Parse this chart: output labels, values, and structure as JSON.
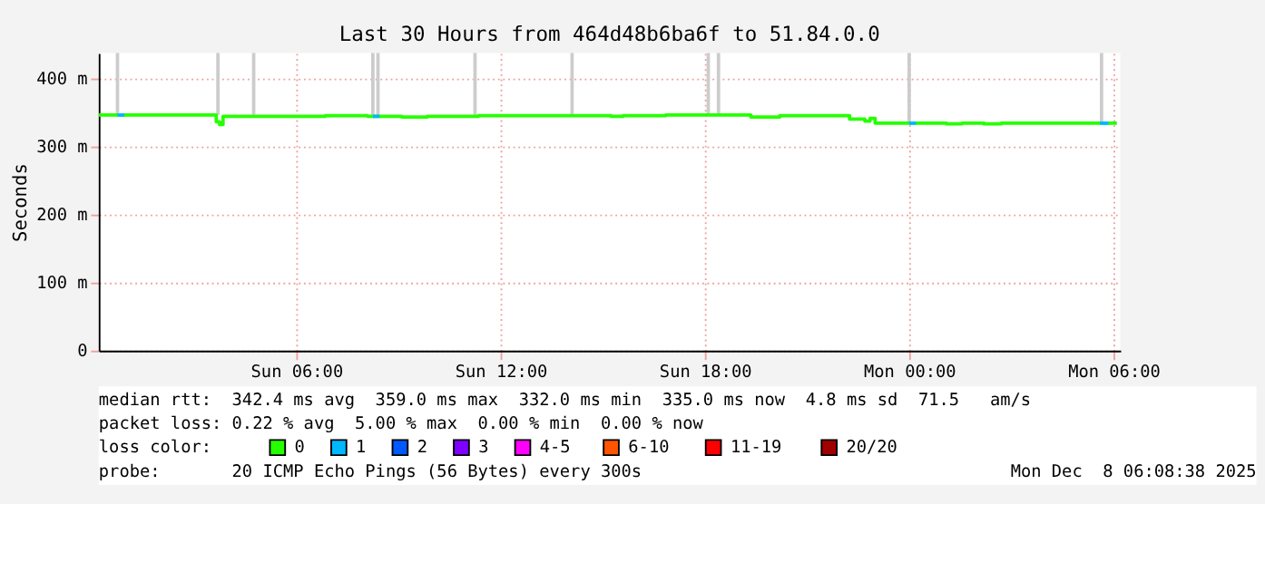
{
  "chart_data": {
    "type": "step",
    "title": "Last 30 Hours from 464d48b6ba6f to 51.84.0.0",
    "ylabel": "Seconds",
    "xlim": [
      "2025-12-07T00:12",
      "2025-12-08T06:12"
    ],
    "xticks": [
      {
        "value": "2025-12-07T06:00",
        "label": "Sun 06:00"
      },
      {
        "value": "2025-12-07T12:00",
        "label": "Sun 12:00"
      },
      {
        "value": "2025-12-07T18:00",
        "label": "Sun 18:00"
      },
      {
        "value": "2025-12-08T00:00",
        "label": "Mon 00:00"
      },
      {
        "value": "2025-12-08T06:00",
        "label": "Mon 06:00"
      }
    ],
    "ylim": [
      0,
      437
    ],
    "yticks": [
      0,
      {
        "value": 100,
        "label": "100 m"
      },
      {
        "value": 200,
        "label": "200 m"
      },
      {
        "value": 300,
        "label": "300 m"
      },
      {
        "value": 400,
        "label": "400 m"
      }
    ],
    "grid": true,
    "legend": "bottom left",
    "legend_title": "loss color:",
    "series": [
      {
        "type": "bar",
        "color": "#cccccc",
        "x": [
          "2025-12-07T00:45",
          "2025-12-07T03:42",
          "2025-12-07T04:45",
          "2025-12-07T08:15",
          "2025-12-07T08:24",
          "2025-12-07T11:15",
          "2025-12-07T14:06",
          "2025-12-07T18:06",
          "2025-12-07T18:24",
          "2025-12-08T00:00",
          "2025-12-08T05:39"
        ],
        "base": [
          346,
          346,
          346,
          344,
          344,
          345,
          345,
          346,
          346,
          334,
          334
        ],
        "values": [
          91,
          91,
          91,
          93,
          93,
          92,
          92,
          91,
          91,
          103,
          103
        ]
      },
      {
        "name": "0",
        "color": "#26ff00",
        "x": [
          "2025-12-07T00:12",
          "2025-12-07T03:36",
          "2025-12-07T03:39",
          "2025-12-07T03:45",
          "2025-12-07T03:51",
          "2025-12-07T05:51",
          "2025-12-07T06:51",
          "2025-12-07T08:06",
          "2025-12-07T09:06",
          "2025-12-07T09:51",
          "2025-12-07T11:21",
          "2025-12-07T13:51",
          "2025-12-07T15:15",
          "2025-12-07T15:36",
          "2025-12-07T16:51",
          "2025-12-07T18:51",
          "2025-12-07T19:21",
          "2025-12-07T20:12",
          "2025-12-07T22:06",
          "2025-12-07T22:15",
          "2025-12-07T22:42",
          "2025-12-07T22:51",
          "2025-12-07T23:00",
          "2025-12-08T01:00",
          "2025-12-08T01:06",
          "2025-12-08T01:27",
          "2025-12-08T01:33",
          "2025-12-08T02:12",
          "2025-12-08T02:36",
          "2025-12-08T02:42",
          "2025-12-08T06:06"
        ],
        "values": [
          346,
          346,
          336,
          332,
          344,
          344,
          345,
          344,
          343,
          344,
          345,
          345,
          344,
          345,
          346,
          346,
          343,
          345,
          345,
          340,
          337,
          341,
          334,
          334,
          333,
          333,
          334,
          333,
          333,
          334,
          334
        ]
      },
      {
        "name": "1",
        "color": "#00b8ff",
        "x": [
          "2025-12-07T00:45",
          "2025-12-07T00:57",
          "2025-12-07T01:00",
          "2025-12-07T08:15",
          "2025-12-07T08:27",
          "2025-12-07T08:30",
          "2025-12-08T00:00",
          "2025-12-08T00:12",
          "2025-12-08T00:15",
          "2025-12-08T05:36",
          "2025-12-08T05:51"
        ],
        "values": [
          346,
          346,
          null,
          344,
          344,
          null,
          334,
          334,
          null,
          334,
          334
        ]
      },
      {
        "name": "2",
        "color": "#0059ff"
      },
      {
        "name": "3",
        "color": "#7e00ff"
      },
      {
        "name": "4-5",
        "color": "#ff00ff"
      },
      {
        "name": "6-10",
        "color": "#ff5500"
      },
      {
        "name": "11-19",
        "color": "#ff0000"
      },
      {
        "name": "20/20",
        "color": "#a10000"
      }
    ],
    "annotations": [
      "median rtt:  342.4 ms avg  359.0 ms max  332.0 ms min  335.0 ms now  4.8 ms sd  71.5   am/s",
      "packet loss: 0.22 % avg  5.00 % max  0.00 % min  0.00 % now",
      "probe:       20 ICMP Echo Pings (56 Bytes) every 300s",
      "Mon Dec  8 06:08:38 2025"
    ]
  }
}
